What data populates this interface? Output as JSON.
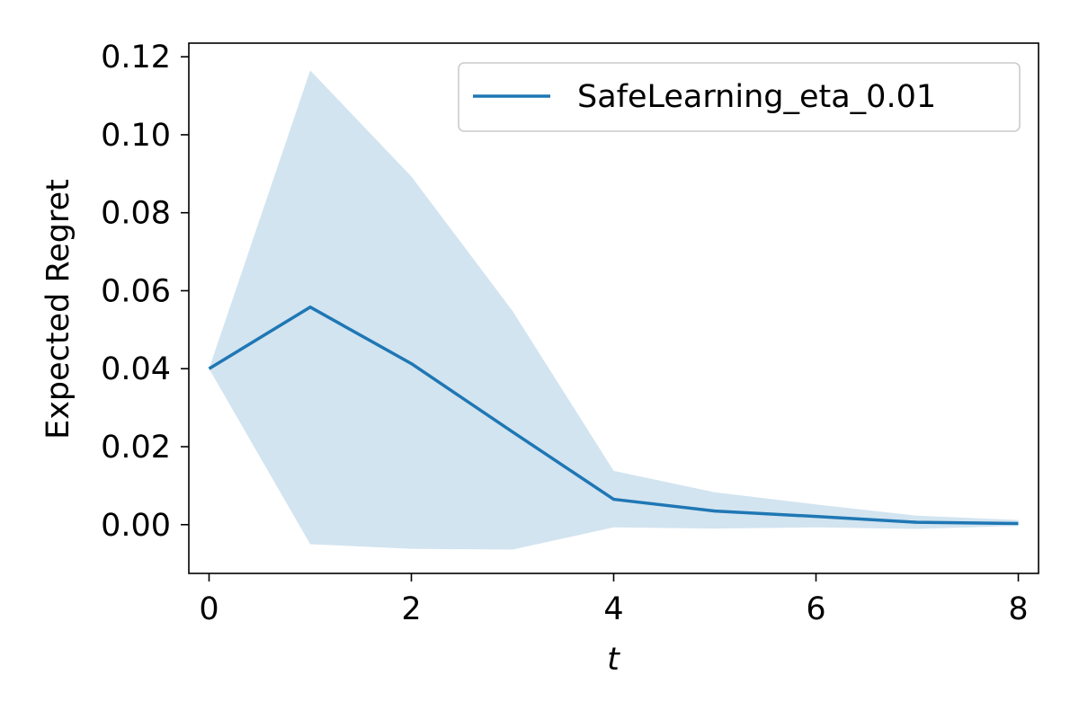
{
  "chart_data": {
    "type": "line",
    "title": "",
    "xlabel": "t",
    "ylabel": "Expected Regret",
    "xlim": [
      -0.2,
      8.2
    ],
    "ylim": [
      -0.0125,
      0.1235
    ],
    "xticks": [
      0,
      2,
      4,
      6,
      8
    ],
    "xtick_labels": [
      "0",
      "2",
      "4",
      "6",
      "8"
    ],
    "yticks": [
      0.0,
      0.02,
      0.04,
      0.06,
      0.08,
      0.1,
      0.12
    ],
    "ytick_labels": [
      "0.00",
      "0.02",
      "0.04",
      "0.06",
      "0.08",
      "0.10",
      "0.12"
    ],
    "grid": false,
    "legend_position": "top-right",
    "x": [
      0,
      1,
      2,
      3,
      4,
      5,
      6,
      7,
      8
    ],
    "series": [
      {
        "name": "SafeLearning_eta_0.01",
        "color": "#1f77b4",
        "values": [
          0.04,
          0.0558,
          0.0413,
          0.0238,
          0.0065,
          0.0035,
          0.0021,
          0.0006,
          0.0003
        ],
        "band_upper": [
          0.04,
          0.1165,
          0.0893,
          0.0548,
          0.0138,
          0.0083,
          0.0052,
          0.0023,
          0.0012
        ],
        "band_lower": [
          0.04,
          -0.005,
          -0.0062,
          -0.0064,
          -0.0007,
          -0.001,
          -0.0007,
          -0.0011,
          -0.0003
        ],
        "band_color": "#1f77b4"
      }
    ]
  }
}
